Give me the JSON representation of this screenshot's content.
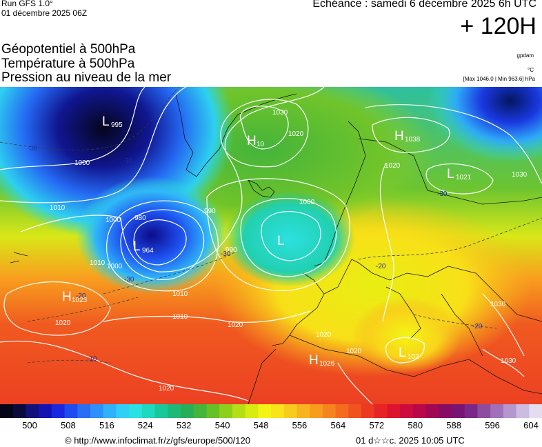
{
  "header": {
    "run": "Run GFS 1.0°",
    "run_date": "01 décembre 2025 06Z",
    "echeance": "Echéance : samedi 6 décembre 2025 6h UTC",
    "lead": "+ 120H",
    "title1": "Géopotentiel à 500hPa",
    "title2": "Température à 500hPa",
    "title3": "Pression au niveau de la mer",
    "unit_geo": "gpdam",
    "unit_temp": "°C",
    "minmax": "[Max 1046.0 | Min 963.6] hPa"
  },
  "pressure_centers": [
    {
      "type": "L",
      "value": "995"
    },
    {
      "type": "H",
      "value": "10"
    },
    {
      "type": "H",
      "value": "1038"
    },
    {
      "type": "L",
      "value": "1021"
    },
    {
      "type": "L",
      "value": "964"
    },
    {
      "type": "L",
      "value": ""
    },
    {
      "type": "H",
      "value": "1023"
    },
    {
      "type": "H",
      "value": "1026"
    },
    {
      "type": "L",
      "value": "102"
    }
  ],
  "isobar_labels": [
    "1000",
    "1010",
    "1020",
    "1030",
    "990",
    "980",
    "1000",
    "1010",
    "1020",
    "1030",
    "990",
    "1000",
    "1010",
    "1020",
    "1020",
    "1020",
    "1010",
    "1020",
    "1030",
    "1030",
    "1020",
    "1000"
  ],
  "temp_labels": [
    "-30",
    "-30",
    "-30",
    "-30",
    "-30",
    "-20",
    "-20",
    "-20",
    "-10"
  ],
  "scale": {
    "colors": [
      "#05051a",
      "#0a0a3c",
      "#12127a",
      "#1414b4",
      "#1a28e0",
      "#1e4cf0",
      "#2a6ef4",
      "#2e90f8",
      "#30b2fa",
      "#30d0f6",
      "#2ae2e2",
      "#1ed8c0",
      "#18c89a",
      "#1eb878",
      "#28ae56",
      "#44b43a",
      "#66c028",
      "#8cd01c",
      "#b4de16",
      "#d8ec12",
      "#f4f414",
      "#f8e418",
      "#f8cc1c",
      "#f8b41e",
      "#f89c1e",
      "#f6841e",
      "#f46c1e",
      "#f05220",
      "#ec3a22",
      "#e62426",
      "#dc1430",
      "#cc0c3c",
      "#b80848",
      "#a00854",
      "#880c64",
      "#781474",
      "#7a2888",
      "#8c4ca0",
      "#a070b8",
      "#b696ce",
      "#ccbcdf",
      "#e4dcef"
    ],
    "ticks": [
      "500",
      "508",
      "516",
      "524",
      "532",
      "540",
      "548",
      "556",
      "564",
      "572",
      "580",
      "588",
      "596",
      "604"
    ]
  },
  "footer": {
    "credit": "© http://www.infoclimat.fr/z/gfs/europe/500/120",
    "date": "01 d☆☆c. 2025 10:05 UTC"
  }
}
